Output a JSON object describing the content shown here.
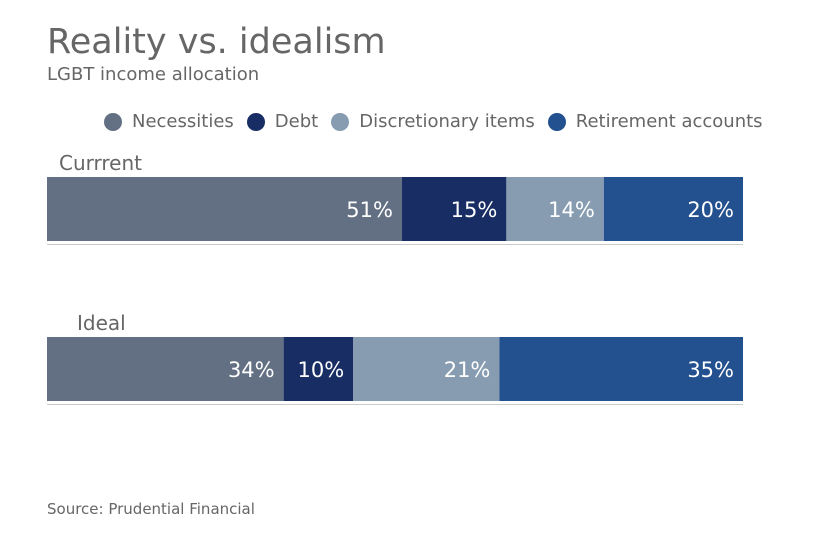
{
  "title": "Reality vs. idealism",
  "subtitle": "LGBT income allocation",
  "source": "Source: Prudential Financial",
  "colors": {
    "Necessities": "#637083",
    "Debt": "#172d63",
    "Discretionary items": "#879cb1",
    "Retirement accounts": "#23508e",
    "baseline": "#cccccc"
  },
  "chart_data": {
    "type": "bar",
    "orientation": "horizontal",
    "stacked": true,
    "categories": [
      "Currrent",
      "Ideal"
    ],
    "series": [
      {
        "name": "Necessities",
        "values": [
          51,
          34
        ],
        "labels": [
          "51%",
          "34%"
        ]
      },
      {
        "name": "Debt",
        "values": [
          15,
          10
        ],
        "labels": [
          "15%",
          "10%"
        ]
      },
      {
        "name": "Discretionary items",
        "values": [
          14,
          21
        ],
        "labels": [
          "14%",
          "21%"
        ]
      },
      {
        "name": "Retirement accounts",
        "values": [
          20,
          35
        ],
        "labels": [
          "20%",
          "35%"
        ]
      }
    ],
    "xlim": [
      0,
      100
    ],
    "unit": "%",
    "legend": "top"
  }
}
